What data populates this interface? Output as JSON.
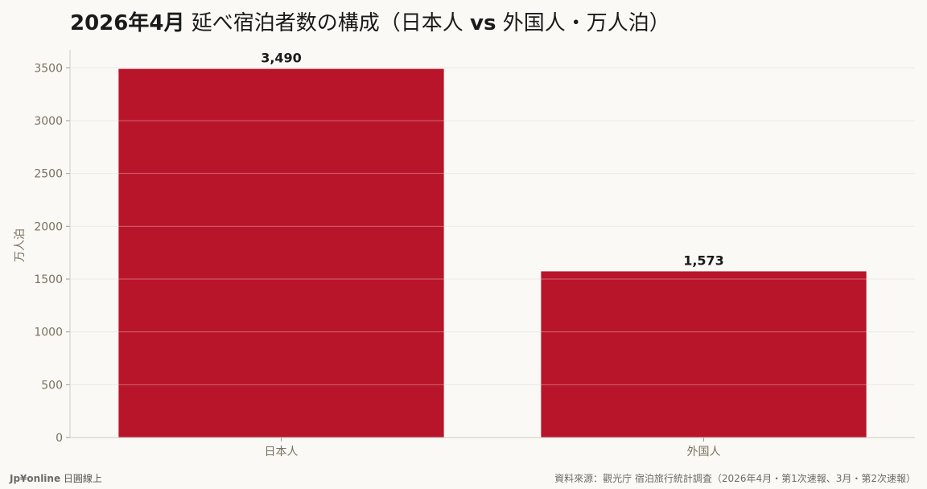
{
  "chart_data": {
    "type": "bar",
    "title_bold_prefix": "2026年4月",
    "title_rest_1": " 延べ宿泊者数の構成（日本人 ",
    "title_bold_vs": "vs",
    "title_rest_2": " 外国人・万人泊）",
    "categories": [
      "日本人",
      "外国人"
    ],
    "values": [
      3490,
      1573
    ],
    "value_labels": [
      "3,490",
      "1,573"
    ],
    "ylabel": "万人泊",
    "ylim": [
      0,
      3670
    ],
    "yticks": [
      0,
      500,
      1000,
      1500,
      2000,
      2500,
      3000,
      3500
    ],
    "grid": true,
    "bar_color": "#b8152b"
  },
  "footer": {
    "brand": "Jp¥online",
    "brand_suffix": " 日圓線上",
    "source": "資料來源：觀光庁 宿泊旅行統計調査（2026年4月・第1次速報、3月・第2次速報）"
  }
}
